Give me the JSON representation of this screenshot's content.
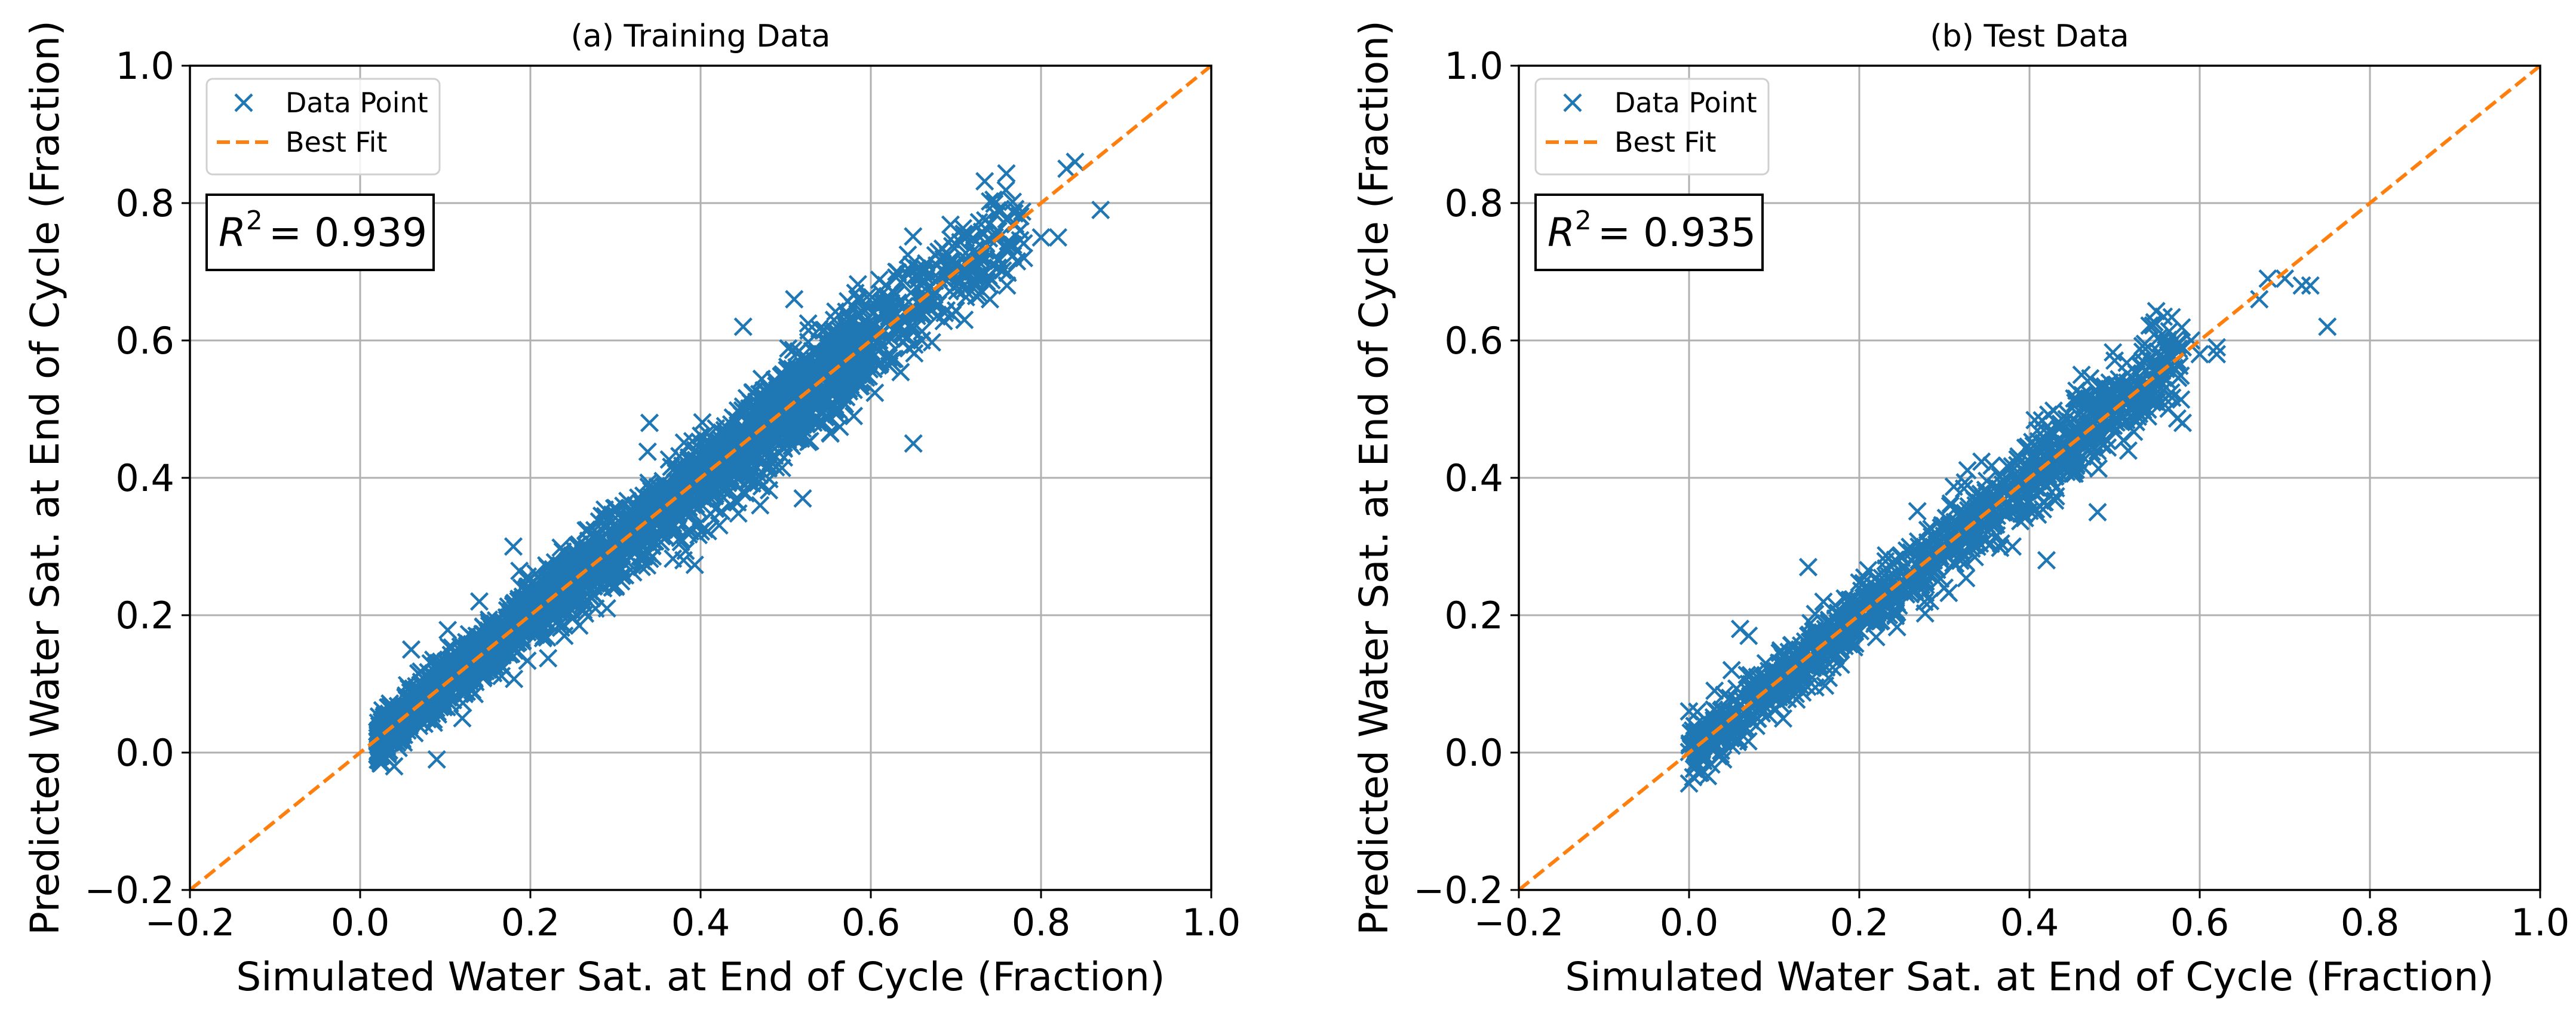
{
  "chart_data": [
    {
      "type": "scatter",
      "title": "(a) Training Data",
      "xlabel": "Simulated Water Sat. at End of Cycle (Fraction)",
      "ylabel": "Predicted Water Sat. at End of Cycle (Fraction)",
      "xlim": [
        -0.2,
        1.0
      ],
      "ylim": [
        -0.2,
        1.0
      ],
      "xticks": [
        "−0.2",
        "0.0",
        "0.2",
        "0.4",
        "0.6",
        "0.8",
        "1.0"
      ],
      "yticks": [
        "−0.2",
        "0.0",
        "0.2",
        "0.4",
        "0.6",
        "0.8",
        "1.0"
      ],
      "grid": true,
      "legend": {
        "placement": "top-left",
        "entries": [
          "Data Point",
          "Best Fit"
        ]
      },
      "annotation": {
        "prefix": "R",
        "exponent": "2",
        "value": "= 0.939"
      },
      "best_fit": {
        "x": [
          -0.2,
          1.0
        ],
        "y": [
          -0.2,
          1.0
        ]
      },
      "series": [
        {
          "name": "Data Point",
          "x": [
            0.02,
            0.03,
            0.03,
            0.04,
            0.05,
            0.05,
            0.06,
            0.07,
            0.08,
            0.09,
            0.1,
            0.11,
            0.12,
            0.13,
            0.14,
            0.15,
            0.16,
            0.17,
            0.18,
            0.19,
            0.2,
            0.21,
            0.22,
            0.23,
            0.24,
            0.25,
            0.26,
            0.27,
            0.28,
            0.29,
            0.3,
            0.31,
            0.32,
            0.33,
            0.34,
            0.35,
            0.36,
            0.37,
            0.38,
            0.39,
            0.4,
            0.41,
            0.42,
            0.43,
            0.44,
            0.45,
            0.46,
            0.47,
            0.48,
            0.49,
            0.5,
            0.51,
            0.52,
            0.53,
            0.54,
            0.55,
            0.56,
            0.57,
            0.58,
            0.59,
            0.6,
            0.61,
            0.62,
            0.63,
            0.64,
            0.65,
            0.66,
            0.67,
            0.68,
            0.7,
            0.72,
            0.74,
            0.76,
            0.78,
            0.8,
            0.83,
            0.84,
            0.87,
            0.65,
            0.52,
            0.45,
            0.34,
            0.12,
            0.51,
            0.74,
            0.63,
            0.56,
            0.29,
            0.18,
            0.06,
            0.09,
            0.14,
            0.24,
            0.38,
            0.47,
            0.58,
            0.66,
            0.71,
            0.82,
            0.04
          ],
          "y": [
            0.03,
            0.05,
            0.01,
            0.04,
            0.06,
            0.03,
            0.08,
            0.06,
            0.09,
            0.08,
            0.11,
            0.1,
            0.13,
            0.12,
            0.15,
            0.14,
            0.17,
            0.16,
            0.19,
            0.18,
            0.21,
            0.2,
            0.23,
            0.22,
            0.25,
            0.24,
            0.27,
            0.26,
            0.29,
            0.28,
            0.31,
            0.3,
            0.33,
            0.32,
            0.35,
            0.34,
            0.37,
            0.36,
            0.39,
            0.38,
            0.41,
            0.4,
            0.43,
            0.42,
            0.45,
            0.44,
            0.47,
            0.46,
            0.49,
            0.48,
            0.51,
            0.5,
            0.53,
            0.52,
            0.55,
            0.54,
            0.57,
            0.56,
            0.59,
            0.58,
            0.61,
            0.6,
            0.63,
            0.62,
            0.65,
            0.64,
            0.67,
            0.66,
            0.69,
            0.68,
            0.7,
            0.66,
            0.68,
            0.72,
            0.75,
            0.85,
            0.86,
            0.79,
            0.45,
            0.37,
            0.62,
            0.48,
            0.05,
            0.66,
            0.77,
            0.7,
            0.54,
            0.21,
            0.3,
            0.15,
            -0.01,
            0.22,
            0.17,
            0.28,
            0.36,
            0.49,
            0.6,
            0.63,
            0.75,
            -0.02
          ]
        }
      ]
    },
    {
      "type": "scatter",
      "title": "(b) Test Data",
      "xlabel": "Simulated Water Sat. at End of Cycle (Fraction)",
      "ylabel": "Predicted Water Sat. at End of Cycle (Fraction)",
      "xlim": [
        -0.2,
        1.0
      ],
      "ylim": [
        -0.2,
        1.0
      ],
      "xticks": [
        "−0.2",
        "0.0",
        "0.2",
        "0.4",
        "0.6",
        "0.8",
        "1.0"
      ],
      "yticks": [
        "−0.2",
        "0.0",
        "0.2",
        "0.4",
        "0.6",
        "0.8",
        "1.0"
      ],
      "grid": true,
      "legend": {
        "placement": "top-left",
        "entries": [
          "Data Point",
          "Best Fit"
        ]
      },
      "annotation": {
        "prefix": "R",
        "exponent": "2",
        "value": "= 0.935"
      },
      "best_fit": {
        "x": [
          -0.2,
          1.0
        ],
        "y": [
          -0.2,
          1.0
        ]
      },
      "series": [
        {
          "name": "Data Point",
          "x": [
            0.0,
            0.02,
            0.03,
            0.04,
            0.05,
            0.06,
            0.07,
            0.08,
            0.09,
            0.1,
            0.11,
            0.12,
            0.13,
            0.14,
            0.15,
            0.16,
            0.17,
            0.18,
            0.19,
            0.2,
            0.21,
            0.22,
            0.23,
            0.24,
            0.25,
            0.26,
            0.27,
            0.28,
            0.29,
            0.3,
            0.31,
            0.32,
            0.33,
            0.34,
            0.35,
            0.36,
            0.37,
            0.38,
            0.39,
            0.4,
            0.41,
            0.42,
            0.43,
            0.44,
            0.45,
            0.46,
            0.47,
            0.48,
            0.49,
            0.5,
            0.51,
            0.52,
            0.53,
            0.54,
            0.55,
            0.56,
            0.57,
            0.58,
            0.59,
            0.6,
            0.62,
            0.67,
            0.68,
            0.7,
            0.72,
            0.73,
            0.75,
            0.06,
            0.07,
            0.04,
            0.14,
            0.38,
            0.42,
            0.58,
            0.62,
            0.05,
            0.48,
            0.3,
            0.22,
            0.09
          ],
          "y": [
            0.06,
            0.02,
            0.09,
            0.04,
            0.12,
            0.07,
            0.1,
            0.11,
            0.08,
            0.12,
            0.14,
            0.13,
            0.15,
            0.17,
            0.16,
            0.18,
            0.17,
            0.19,
            0.2,
            0.22,
            0.21,
            0.23,
            0.24,
            0.25,
            0.24,
            0.26,
            0.27,
            0.28,
            0.27,
            0.3,
            0.31,
            0.29,
            0.33,
            0.32,
            0.34,
            0.36,
            0.35,
            0.37,
            0.38,
            0.39,
            0.4,
            0.41,
            0.43,
            0.42,
            0.44,
            0.45,
            0.47,
            0.46,
            0.48,
            0.5,
            0.51,
            0.49,
            0.53,
            0.52,
            0.55,
            0.57,
            0.56,
            0.59,
            0.6,
            0.58,
            0.58,
            0.66,
            0.69,
            0.69,
            0.68,
            0.68,
            0.62,
            0.18,
            0.17,
            -0.01,
            0.27,
            0.3,
            0.28,
            0.48,
            0.59,
            0.01,
            0.35,
            0.24,
            0.2,
            0.13
          ]
        }
      ]
    }
  ]
}
